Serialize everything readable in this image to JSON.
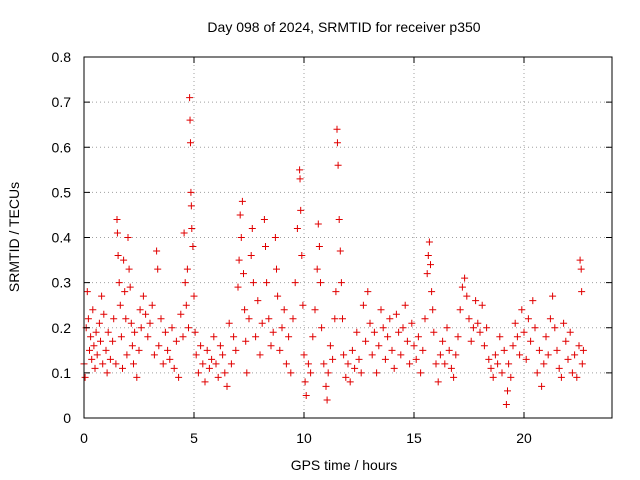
{
  "chart_data": {
    "type": "scatter",
    "title": "Day 098 of 2024, SRMTID for receiver p350",
    "xlabel": "GPS time / hours",
    "ylabel": "SRMTID / TECUs",
    "xlim": [
      0,
      24
    ],
    "ylim": [
      0,
      0.8
    ],
    "xticks": [
      0,
      5,
      10,
      15,
      20
    ],
    "yticks": [
      0,
      0.1,
      0.2,
      0.3,
      0.4,
      0.5,
      0.6,
      0.7,
      0.8
    ],
    "xtick_labels": [
      "0",
      "5",
      "10",
      "15",
      "20"
    ],
    "ytick_labels": [
      "0",
      "0.1",
      "0.2",
      "0.3",
      "0.4",
      "0.5",
      "0.6",
      "0.7",
      "0.8"
    ],
    "grid": true,
    "marker": "+",
    "color": "#e00000",
    "series": [
      {
        "name": "p350",
        "points": [
          [
            0.0,
            0.12
          ],
          [
            0.05,
            0.09
          ],
          [
            0.1,
            0.2
          ],
          [
            0.15,
            0.28
          ],
          [
            0.2,
            0.22
          ],
          [
            0.25,
            0.15
          ],
          [
            0.3,
            0.18
          ],
          [
            0.35,
            0.13
          ],
          [
            0.4,
            0.24
          ],
          [
            0.45,
            0.16
          ],
          [
            0.5,
            0.11
          ],
          [
            0.55,
            0.19
          ],
          [
            0.6,
            0.14
          ],
          [
            0.7,
            0.21
          ],
          [
            0.75,
            0.17
          ],
          [
            0.8,
            0.27
          ],
          [
            0.85,
            0.12
          ],
          [
            0.9,
            0.23
          ],
          [
            1.0,
            0.15
          ],
          [
            1.05,
            0.1
          ],
          [
            1.1,
            0.19
          ],
          [
            1.2,
            0.13
          ],
          [
            1.3,
            0.17
          ],
          [
            1.35,
            0.22
          ],
          [
            1.45,
            0.12
          ],
          [
            1.5,
            0.44
          ],
          [
            1.52,
            0.41
          ],
          [
            1.55,
            0.36
          ],
          [
            1.6,
            0.3
          ],
          [
            1.65,
            0.25
          ],
          [
            1.7,
            0.18
          ],
          [
            1.75,
            0.11
          ],
          [
            1.8,
            0.35
          ],
          [
            1.85,
            0.28
          ],
          [
            1.9,
            0.22
          ],
          [
            1.95,
            0.14
          ],
          [
            2.0,
            0.4
          ],
          [
            2.05,
            0.33
          ],
          [
            2.1,
            0.29
          ],
          [
            2.15,
            0.21
          ],
          [
            2.2,
            0.16
          ],
          [
            2.25,
            0.12
          ],
          [
            2.3,
            0.19
          ],
          [
            2.4,
            0.09
          ],
          [
            2.5,
            0.15
          ],
          [
            2.55,
            0.24
          ],
          [
            2.6,
            0.2
          ],
          [
            2.7,
            0.27
          ],
          [
            2.8,
            0.23
          ],
          [
            2.9,
            0.18
          ],
          [
            3.0,
            0.21
          ],
          [
            3.1,
            0.25
          ],
          [
            3.2,
            0.14
          ],
          [
            3.3,
            0.37
          ],
          [
            3.35,
            0.33
          ],
          [
            3.4,
            0.16
          ],
          [
            3.5,
            0.22
          ],
          [
            3.6,
            0.12
          ],
          [
            3.7,
            0.19
          ],
          [
            3.8,
            0.15
          ],
          [
            3.9,
            0.13
          ],
          [
            4.0,
            0.2
          ],
          [
            4.1,
            0.11
          ],
          [
            4.2,
            0.17
          ],
          [
            4.3,
            0.09
          ],
          [
            4.4,
            0.23
          ],
          [
            4.5,
            0.18
          ],
          [
            4.55,
            0.41
          ],
          [
            4.6,
            0.3
          ],
          [
            4.65,
            0.25
          ],
          [
            4.7,
            0.33
          ],
          [
            4.75,
            0.2
          ],
          [
            4.8,
            0.71
          ],
          [
            4.82,
            0.66
          ],
          [
            4.84,
            0.61
          ],
          [
            4.86,
            0.5
          ],
          [
            4.88,
            0.47
          ],
          [
            4.9,
            0.42
          ],
          [
            4.95,
            0.38
          ],
          [
            5.0,
            0.27
          ],
          [
            5.05,
            0.19
          ],
          [
            5.1,
            0.14
          ],
          [
            5.2,
            0.1
          ],
          [
            5.3,
            0.16
          ],
          [
            5.4,
            0.12
          ],
          [
            5.5,
            0.08
          ],
          [
            5.6,
            0.15
          ],
          [
            5.7,
            0.11
          ],
          [
            5.8,
            0.13
          ],
          [
            5.9,
            0.18
          ],
          [
            6.0,
            0.12
          ],
          [
            6.1,
            0.09
          ],
          [
            6.2,
            0.16
          ],
          [
            6.3,
            0.14
          ],
          [
            6.4,
            0.1
          ],
          [
            6.5,
            0.07
          ],
          [
            6.6,
            0.21
          ],
          [
            6.7,
            0.12
          ],
          [
            6.8,
            0.18
          ],
          [
            6.9,
            0.15
          ],
          [
            7.0,
            0.29
          ],
          [
            7.05,
            0.35
          ],
          [
            7.1,
            0.45
          ],
          [
            7.15,
            0.4
          ],
          [
            7.2,
            0.48
          ],
          [
            7.25,
            0.32
          ],
          [
            7.3,
            0.24
          ],
          [
            7.35,
            0.17
          ],
          [
            7.4,
            0.1
          ],
          [
            7.5,
            0.22
          ],
          [
            7.6,
            0.36
          ],
          [
            7.65,
            0.42
          ],
          [
            7.7,
            0.3
          ],
          [
            7.8,
            0.18
          ],
          [
            7.9,
            0.26
          ],
          [
            8.0,
            0.14
          ],
          [
            8.1,
            0.21
          ],
          [
            8.2,
            0.44
          ],
          [
            8.25,
            0.38
          ],
          [
            8.3,
            0.3
          ],
          [
            8.4,
            0.22
          ],
          [
            8.5,
            0.16
          ],
          [
            8.6,
            0.19
          ],
          [
            8.7,
            0.4
          ],
          [
            8.75,
            0.33
          ],
          [
            8.8,
            0.27
          ],
          [
            8.9,
            0.15
          ],
          [
            9.0,
            0.2
          ],
          [
            9.1,
            0.24
          ],
          [
            9.2,
            0.12
          ],
          [
            9.3,
            0.18
          ],
          [
            9.4,
            0.1
          ],
          [
            9.5,
            0.22
          ],
          [
            9.6,
            0.3
          ],
          [
            9.7,
            0.42
          ],
          [
            9.8,
            0.55
          ],
          [
            9.82,
            0.53
          ],
          [
            9.85,
            0.46
          ],
          [
            9.9,
            0.36
          ],
          [
            9.95,
            0.25
          ],
          [
            10.0,
            0.14
          ],
          [
            10.05,
            0.08
          ],
          [
            10.1,
            0.05
          ],
          [
            10.2,
            0.12
          ],
          [
            10.3,
            0.1
          ],
          [
            10.4,
            0.18
          ],
          [
            10.5,
            0.24
          ],
          [
            10.6,
            0.33
          ],
          [
            10.65,
            0.43
          ],
          [
            10.7,
            0.38
          ],
          [
            10.75,
            0.3
          ],
          [
            10.8,
            0.2
          ],
          [
            10.9,
            0.12
          ],
          [
            11.0,
            0.07
          ],
          [
            11.05,
            0.04
          ],
          [
            11.1,
            0.1
          ],
          [
            11.2,
            0.16
          ],
          [
            11.3,
            0.13
          ],
          [
            11.4,
            0.22
          ],
          [
            11.45,
            0.28
          ],
          [
            11.5,
            0.64
          ],
          [
            11.52,
            0.61
          ],
          [
            11.55,
            0.56
          ],
          [
            11.6,
            0.44
          ],
          [
            11.65,
            0.37
          ],
          [
            11.7,
            0.3
          ],
          [
            11.75,
            0.22
          ],
          [
            11.8,
            0.14
          ],
          [
            11.9,
            0.09
          ],
          [
            12.0,
            0.12
          ],
          [
            12.1,
            0.08
          ],
          [
            12.2,
            0.15
          ],
          [
            12.3,
            0.11
          ],
          [
            12.4,
            0.19
          ],
          [
            12.5,
            0.13
          ],
          [
            12.6,
            0.1
          ],
          [
            12.7,
            0.25
          ],
          [
            12.8,
            0.17
          ],
          [
            12.9,
            0.28
          ],
          [
            13.0,
            0.21
          ],
          [
            13.1,
            0.14
          ],
          [
            13.2,
            0.19
          ],
          [
            13.3,
            0.1
          ],
          [
            13.4,
            0.16
          ],
          [
            13.5,
            0.24
          ],
          [
            13.6,
            0.2
          ],
          [
            13.7,
            0.13
          ],
          [
            13.8,
            0.18
          ],
          [
            13.9,
            0.22
          ],
          [
            14.0,
            0.15
          ],
          [
            14.1,
            0.11
          ],
          [
            14.2,
            0.23
          ],
          [
            14.3,
            0.19
          ],
          [
            14.4,
            0.14
          ],
          [
            14.5,
            0.2
          ],
          [
            14.6,
            0.25
          ],
          [
            14.7,
            0.17
          ],
          [
            14.8,
            0.12
          ],
          [
            14.9,
            0.21
          ],
          [
            15.0,
            0.16
          ],
          [
            15.1,
            0.13
          ],
          [
            15.2,
            0.18
          ],
          [
            15.3,
            0.1
          ],
          [
            15.4,
            0.15
          ],
          [
            15.5,
            0.22
          ],
          [
            15.6,
            0.32
          ],
          [
            15.65,
            0.36
          ],
          [
            15.7,
            0.39
          ],
          [
            15.75,
            0.34
          ],
          [
            15.8,
            0.28
          ],
          [
            15.85,
            0.24
          ],
          [
            15.9,
            0.19
          ],
          [
            16.0,
            0.12
          ],
          [
            16.1,
            0.08
          ],
          [
            16.2,
            0.14
          ],
          [
            16.3,
            0.17
          ],
          [
            16.4,
            0.12
          ],
          [
            16.5,
            0.2
          ],
          [
            16.6,
            0.15
          ],
          [
            16.7,
            0.11
          ],
          [
            16.8,
            0.09
          ],
          [
            16.9,
            0.14
          ],
          [
            17.0,
            0.18
          ],
          [
            17.1,
            0.24
          ],
          [
            17.2,
            0.29
          ],
          [
            17.3,
            0.31
          ],
          [
            17.4,
            0.27
          ],
          [
            17.5,
            0.22
          ],
          [
            17.6,
            0.17
          ],
          [
            17.7,
            0.2
          ],
          [
            17.8,
            0.26
          ],
          [
            17.9,
            0.21
          ],
          [
            18.0,
            0.19
          ],
          [
            18.1,
            0.25
          ],
          [
            18.2,
            0.16
          ],
          [
            18.3,
            0.2
          ],
          [
            18.4,
            0.13
          ],
          [
            18.5,
            0.11
          ],
          [
            18.6,
            0.09
          ],
          [
            18.7,
            0.14
          ],
          [
            18.8,
            0.12
          ],
          [
            18.9,
            0.18
          ],
          [
            19.0,
            0.1
          ],
          [
            19.1,
            0.15
          ],
          [
            19.2,
            0.03
          ],
          [
            19.25,
            0.06
          ],
          [
            19.3,
            0.12
          ],
          [
            19.4,
            0.09
          ],
          [
            19.5,
            0.16
          ],
          [
            19.6,
            0.21
          ],
          [
            19.7,
            0.18
          ],
          [
            19.8,
            0.14
          ],
          [
            19.9,
            0.24
          ],
          [
            20.0,
            0.19
          ],
          [
            20.1,
            0.13
          ],
          [
            20.2,
            0.22
          ],
          [
            20.3,
            0.17
          ],
          [
            20.4,
            0.26
          ],
          [
            20.5,
            0.2
          ],
          [
            20.6,
            0.1
          ],
          [
            20.7,
            0.15
          ],
          [
            20.8,
            0.07
          ],
          [
            20.9,
            0.12
          ],
          [
            21.0,
            0.18
          ],
          [
            21.1,
            0.14
          ],
          [
            21.2,
            0.22
          ],
          [
            21.3,
            0.27
          ],
          [
            21.4,
            0.2
          ],
          [
            21.5,
            0.15
          ],
          [
            21.6,
            0.11
          ],
          [
            21.7,
            0.09
          ],
          [
            21.8,
            0.21
          ],
          [
            21.9,
            0.17
          ],
          [
            22.0,
            0.13
          ],
          [
            22.1,
            0.19
          ],
          [
            22.2,
            0.1
          ],
          [
            22.3,
            0.14
          ],
          [
            22.4,
            0.09
          ],
          [
            22.5,
            0.16
          ],
          [
            22.55,
            0.35
          ],
          [
            22.6,
            0.33
          ],
          [
            22.62,
            0.28
          ],
          [
            22.65,
            0.12
          ],
          [
            22.7,
            0.15
          ]
        ]
      }
    ]
  }
}
